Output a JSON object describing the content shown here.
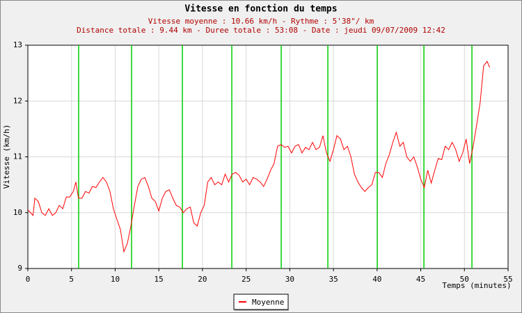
{
  "chart_data": {
    "type": "line",
    "title": "Vitesse en fonction du temps",
    "subtitle": [
      "Vitesse moyenne : 10.66 km/h - Rythme : 5'38\"/ km",
      "Distance totale : 9.44 km - Duree totale : 53:08 - Date : jeudi 09/07/2009 12:42"
    ],
    "xlabel": "Temps (minutes)",
    "ylabel": "Vitesse (km/h)",
    "x": [
      0,
      0.3,
      0.6,
      0.8,
      1.2,
      1.6,
      2.0,
      2.4,
      2.8,
      3.2,
      3.6,
      4.0,
      4.4,
      4.8,
      5.2,
      5.5,
      5.8,
      6.2,
      6.6,
      7.0,
      7.4,
      7.8,
      8.2,
      8.6,
      9.0,
      9.4,
      9.8,
      10.2,
      10.6,
      11.0,
      11.4,
      11.8,
      12.2,
      12.6,
      13.0,
      13.4,
      13.8,
      14.2,
      14.6,
      15.0,
      15.4,
      15.8,
      16.2,
      16.6,
      17.0,
      17.4,
      17.8,
      18.2,
      18.6,
      19.0,
      19.4,
      19.8,
      20.2,
      20.6,
      21.0,
      21.4,
      21.8,
      22.2,
      22.6,
      23.0,
      23.4,
      23.8,
      24.2,
      24.6,
      25.0,
      25.4,
      25.8,
      26.2,
      26.6,
      27.0,
      27.4,
      27.8,
      28.2,
      28.6,
      29.0,
      29.4,
      29.8,
      30.2,
      30.6,
      31.0,
      31.4,
      31.8,
      32.2,
      32.6,
      33.0,
      33.4,
      33.8,
      34.2,
      34.6,
      35.0,
      35.4,
      35.8,
      36.2,
      36.6,
      37.0,
      37.4,
      37.8,
      38.2,
      38.6,
      39.0,
      39.4,
      39.8,
      40.2,
      40.6,
      41.0,
      41.4,
      41.8,
      42.2,
      42.6,
      43.0,
      43.4,
      43.8,
      44.2,
      44.6,
      45.0,
      45.4,
      45.8,
      46.2,
      46.6,
      47.0,
      47.4,
      47.8,
      48.2,
      48.6,
      49.0,
      49.4,
      49.8,
      50.2,
      50.6,
      51.0,
      51.4,
      51.8,
      52.2,
      52.6,
      52.9
    ],
    "series": [
      {
        "name": "Moyenne",
        "color": "#ff0000",
        "values": [
          10.05,
          10.0,
          9.95,
          10.26,
          10.2,
          10.0,
          9.95,
          10.07,
          9.95,
          10.0,
          10.13,
          10.07,
          10.28,
          10.28,
          10.38,
          10.55,
          10.26,
          10.26,
          10.38,
          10.35,
          10.47,
          10.45,
          10.55,
          10.63,
          10.55,
          10.38,
          10.07,
          9.88,
          9.7,
          9.3,
          9.45,
          9.76,
          10.13,
          10.47,
          10.6,
          10.63,
          10.47,
          10.26,
          10.2,
          10.03,
          10.26,
          10.38,
          10.41,
          10.26,
          10.13,
          10.1,
          10.0,
          10.07,
          10.1,
          9.82,
          9.76,
          10.0,
          10.13,
          10.55,
          10.63,
          10.5,
          10.55,
          10.5,
          10.69,
          10.55,
          10.69,
          10.72,
          10.67,
          10.55,
          10.6,
          10.5,
          10.63,
          10.6,
          10.55,
          10.47,
          10.6,
          10.76,
          10.88,
          11.19,
          11.22,
          11.17,
          11.19,
          11.07,
          11.19,
          11.22,
          11.07,
          11.17,
          11.13,
          11.26,
          11.13,
          11.17,
          11.38,
          11.07,
          10.92,
          11.13,
          11.38,
          11.32,
          11.13,
          11.19,
          11.0,
          10.69,
          10.55,
          10.45,
          10.38,
          10.45,
          10.5,
          10.72,
          10.72,
          10.63,
          10.88,
          11.04,
          11.26,
          11.44,
          11.19,
          11.26,
          11.0,
          10.92,
          11.0,
          10.82,
          10.6,
          10.45,
          10.76,
          10.53,
          10.76,
          10.97,
          10.95,
          11.19,
          11.13,
          11.26,
          11.13,
          10.92,
          11.07,
          11.32,
          10.88,
          11.19,
          11.57,
          11.97,
          12.63,
          12.71,
          12.6
        ]
      }
    ],
    "vertical_lines": {
      "color": "#00cc00",
      "x": [
        5.82,
        11.88,
        17.7,
        23.36,
        29.02,
        34.36,
        40.02,
        45.36,
        50.86
      ]
    },
    "xlim": [
      0,
      55
    ],
    "xticks": [
      0,
      5,
      10,
      15,
      20,
      25,
      30,
      35,
      40,
      45,
      50,
      55
    ],
    "ylim": [
      9,
      13
    ],
    "yticks": [
      9,
      10,
      11,
      12,
      13
    ],
    "grid": true,
    "legend": "bottom"
  }
}
